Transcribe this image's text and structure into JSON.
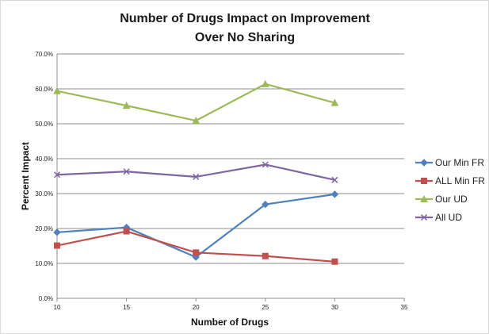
{
  "chart_data": {
    "type": "line",
    "title": [
      "Number of Drugs Impact on Improvement",
      "Over No Sharing"
    ],
    "xlabel": "Number of Drugs",
    "ylabel": "Percent Impact",
    "xlim": [
      10,
      35
    ],
    "ylim": [
      0,
      70
    ],
    "xticks": [
      "10",
      "15",
      "20",
      "25",
      "30",
      "35"
    ],
    "yticks": [
      "0.0%",
      "10.0%",
      "20.0%",
      "30.0%",
      "40.0%",
      "50.0%",
      "60.0%",
      "70.0%"
    ],
    "x": [
      10,
      15,
      20,
      25,
      30
    ],
    "grid": "horizontal",
    "legend_position": "right",
    "series": [
      {
        "name": "Our Min FR",
        "color": "#4F81BD",
        "marker": "diamond",
        "values": [
          18.9,
          20.3,
          11.8,
          26.9,
          29.8
        ]
      },
      {
        "name": "ALL Min FR",
        "color": "#C0504D",
        "marker": "square",
        "values": [
          15.1,
          19.2,
          13.1,
          12.1,
          10.5
        ]
      },
      {
        "name": "Our UD",
        "color": "#9BBB59",
        "marker": "triangle",
        "values": [
          59.4,
          55.2,
          50.9,
          61.4,
          56.0
        ]
      },
      {
        "name": "All UD",
        "color": "#8064A2",
        "marker": "x",
        "values": [
          35.4,
          36.3,
          34.8,
          38.3,
          33.9
        ]
      }
    ]
  }
}
